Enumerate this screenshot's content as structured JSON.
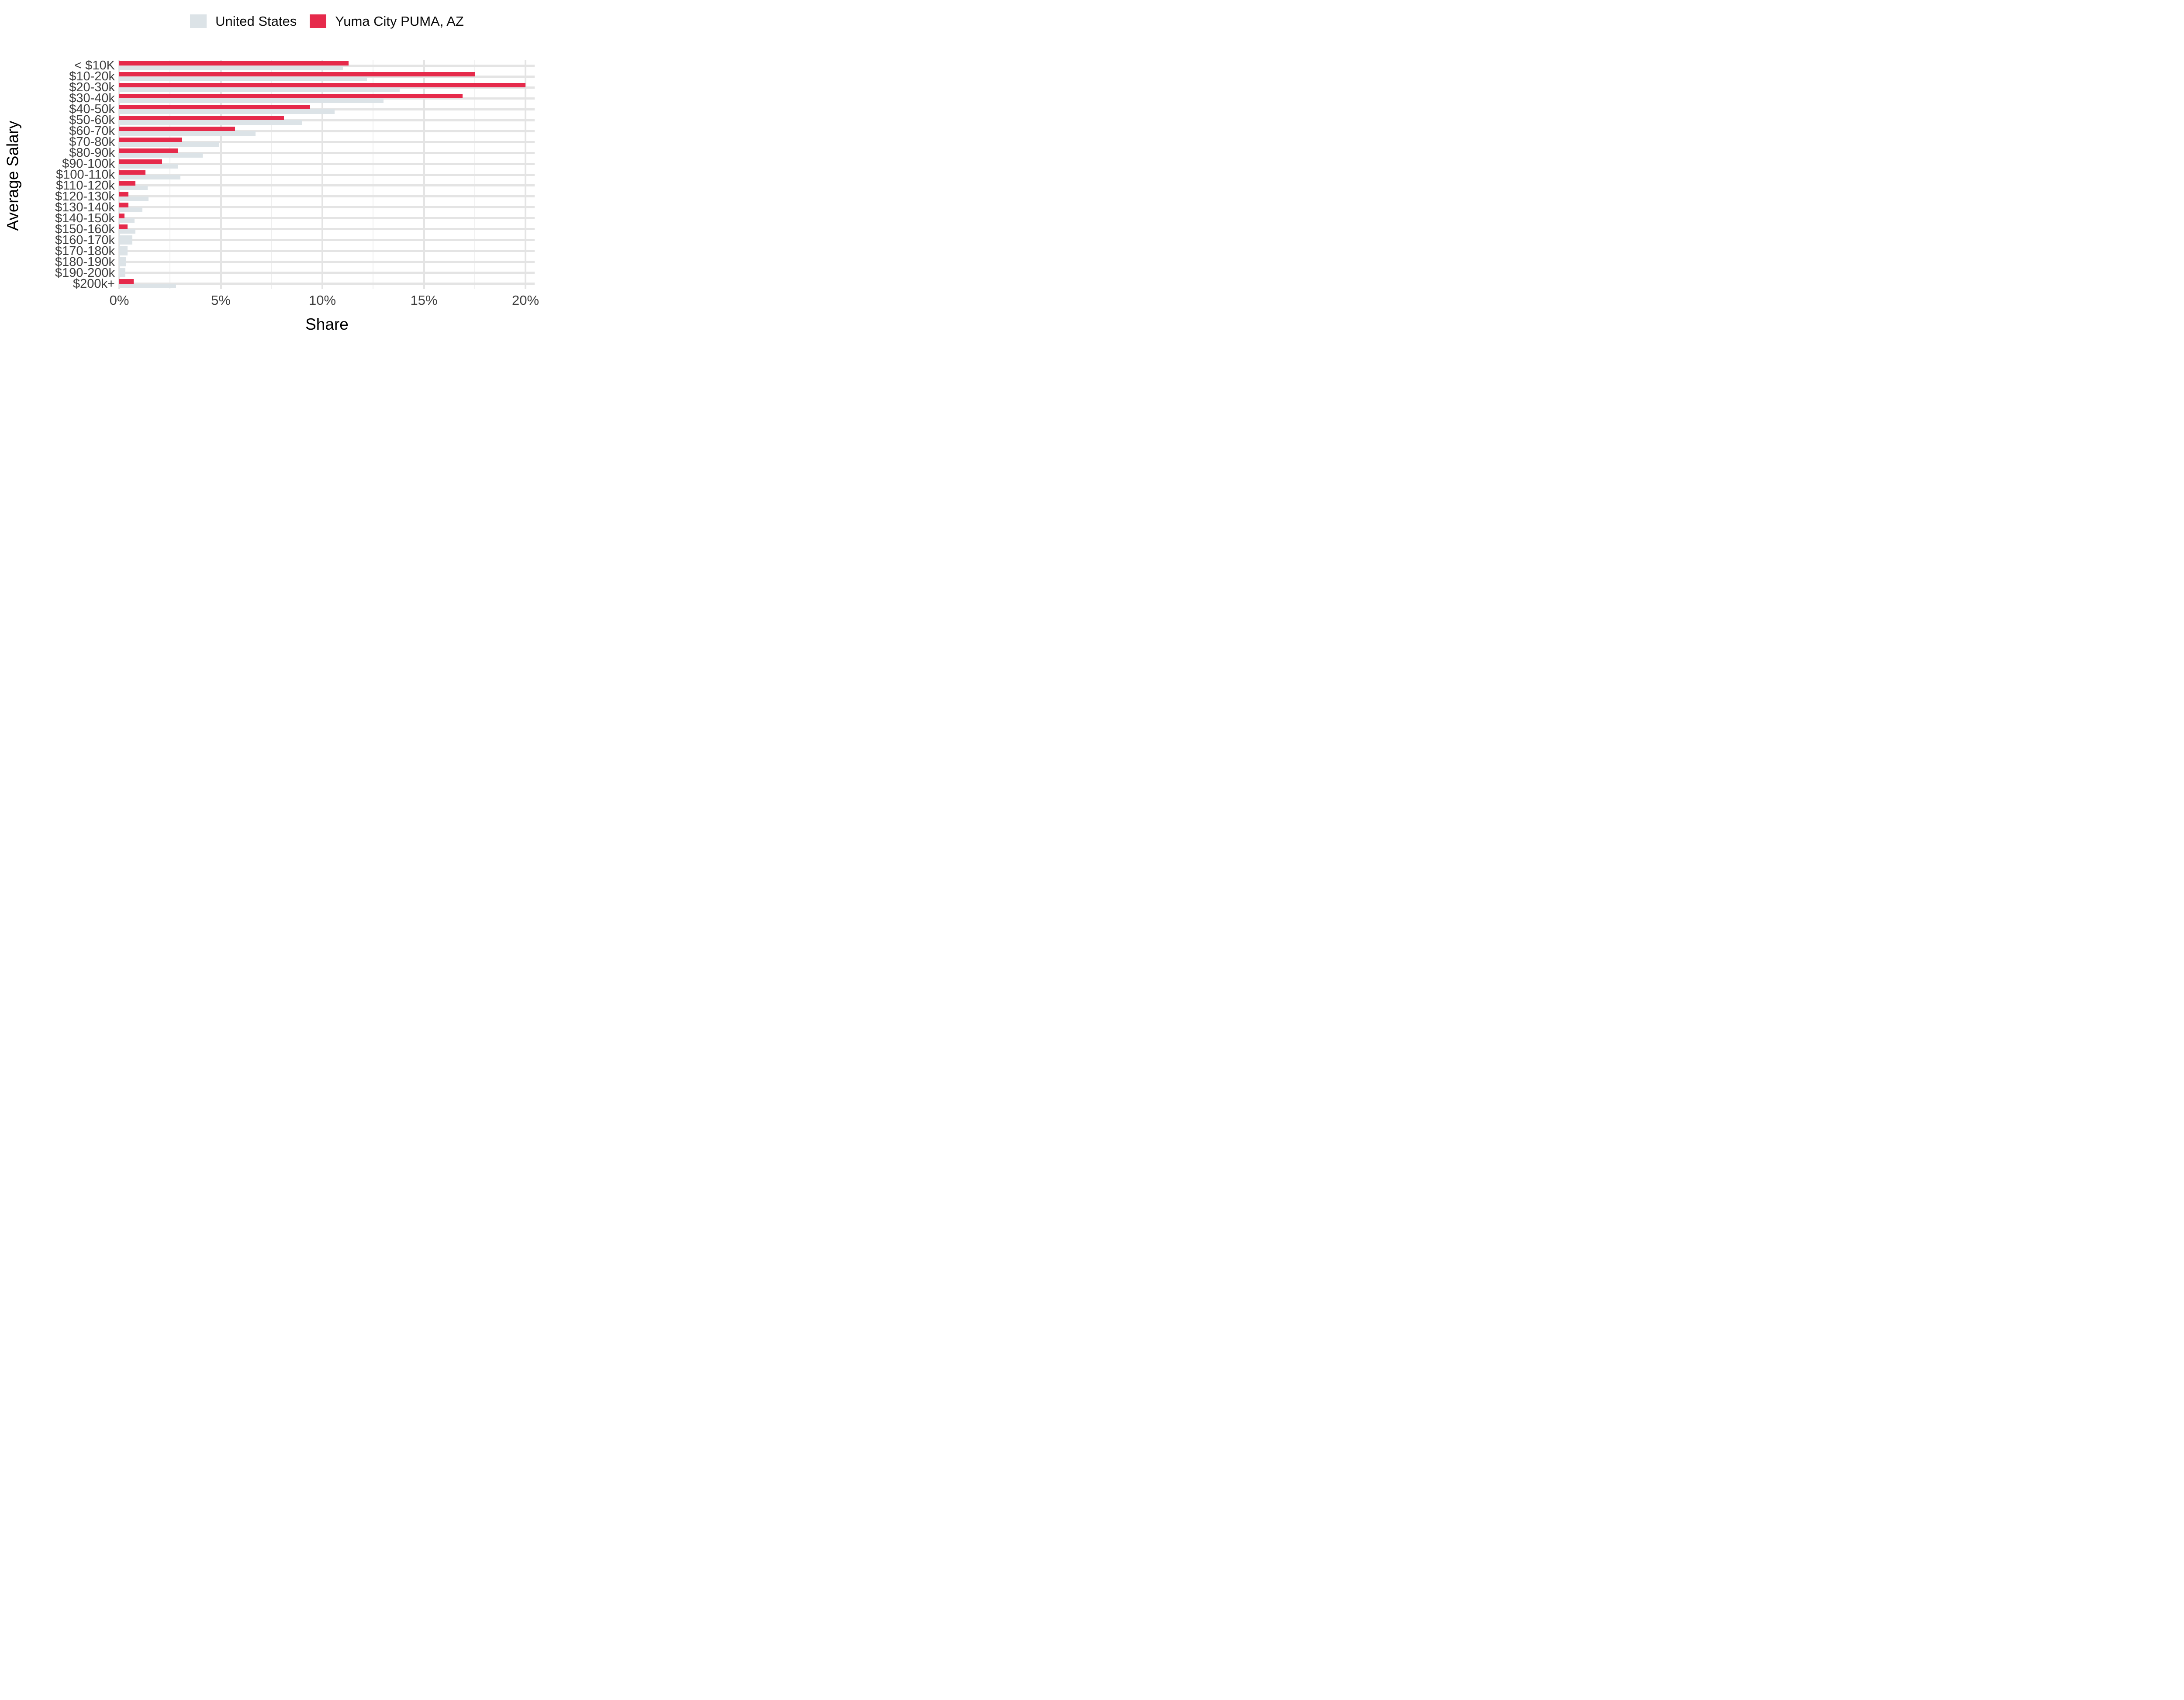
{
  "chart_data": {
    "type": "bar",
    "orientation": "horizontal",
    "title": "",
    "xlabel": "Share",
    "ylabel": "Average Salary",
    "x_ticks": [
      "0%",
      "5%",
      "10%",
      "15%",
      "20%"
    ],
    "x_tick_values": [
      0,
      5,
      10,
      15,
      20
    ],
    "x_minor_tick_values": [
      2.5,
      7.5,
      12.5,
      17.5
    ],
    "xlim": [
      0,
      20.45
    ],
    "grid": "major and minor vertical gridlines, horizontal strip at each category",
    "legend_position": "top center",
    "categories": [
      "< $10K",
      "$10-20k",
      "$20-30k",
      "$30-40k",
      "$40-50k",
      "$50-60k",
      "$60-70k",
      "$70-80k",
      "$80-90k",
      "$90-100k",
      "$100-110k",
      "$110-120k",
      "$120-130k",
      "$130-140k",
      "$140-150k",
      "$150-160k",
      "$160-170k",
      "$170-180k",
      "$180-190k",
      "$190-200k",
      "$200k+"
    ],
    "series": [
      {
        "name": "United States",
        "color": "#dce3e7",
        "values": [
          11.0,
          12.2,
          13.8,
          13.0,
          10.6,
          9.0,
          6.7,
          4.9,
          4.1,
          2.9,
          3.0,
          1.4,
          1.45,
          1.15,
          0.75,
          0.8,
          0.65,
          0.4,
          0.35,
          0.3,
          2.8
        ]
      },
      {
        "name": "Yuma City PUMA, AZ",
        "color": "#e62a4b",
        "values": [
          11.3,
          17.5,
          20.0,
          16.9,
          9.4,
          8.1,
          5.7,
          3.1,
          2.9,
          2.1,
          1.3,
          0.8,
          0.45,
          0.45,
          0.25,
          0.4,
          null,
          null,
          null,
          null,
          0.7
        ]
      }
    ]
  },
  "colors": {
    "us_bar": "#dce3e7",
    "yuma_bar": "#e62a4b",
    "grid_major": "#e4e4e4",
    "grid_minor": "#efefef",
    "tick_text": "#3f3f3f",
    "title_text": "#000000"
  }
}
